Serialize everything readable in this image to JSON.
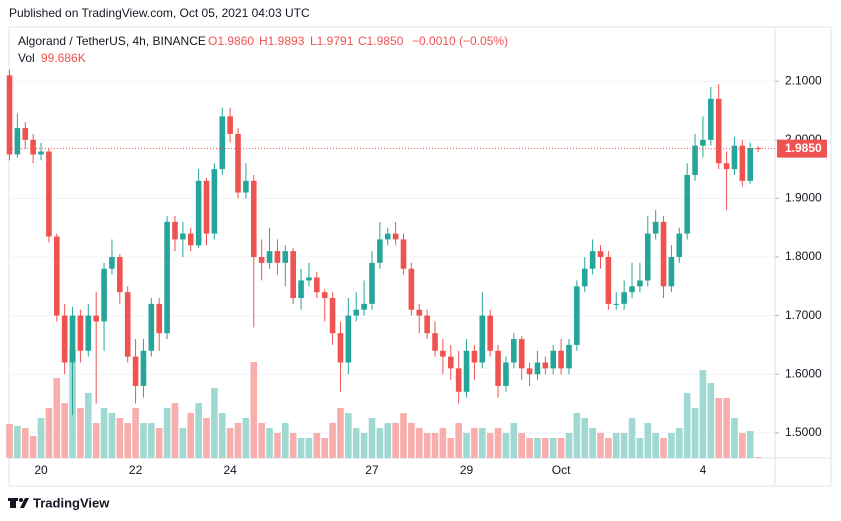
{
  "header": {
    "published": "Published on TradingView.com, Oct 05, 2021 04:03 UTC",
    "footer": "TradingView"
  },
  "chart_data": {
    "type": "candlestick",
    "title": "Algorand / TetherUS, 4h, BINANCE",
    "ohlc_labels": [
      "O1.9860",
      "H1.9893",
      "L1.9791",
      "C1.9850"
    ],
    "change_label": "−0.0010 (−0.05%)",
    "volume_name": "Vol",
    "volume_label": "99.686K",
    "categories": [
      null,
      null,
      null,
      null,
      "20",
      null,
      null,
      null,
      null,
      null,
      null,
      null,
      null,
      null,
      null,
      null,
      "22",
      null,
      null,
      null,
      null,
      null,
      null,
      null,
      null,
      null,
      null,
      null,
      "24",
      null,
      null,
      null,
      null,
      null,
      null,
      null,
      null,
      null,
      null,
      null,
      null,
      null,
      null,
      null,
      null,
      null,
      "27",
      null,
      null,
      null,
      null,
      null,
      null,
      null,
      null,
      null,
      null,
      null,
      "29",
      null,
      null,
      null,
      null,
      null,
      null,
      null,
      null,
      null,
      null,
      null,
      "Oct",
      null,
      null,
      null,
      null,
      null,
      null,
      null,
      null,
      null,
      null,
      null,
      null,
      null,
      null,
      null,
      null,
      null,
      "4",
      null,
      null,
      null,
      null,
      null,
      null,
      null
    ],
    "open": [
      2.11,
      1.975,
      2.02,
      2.0,
      1.975,
      1.98,
      1.835,
      1.7,
      1.62,
      1.7,
      1.64,
      1.7,
      1.69,
      1.78,
      1.8,
      1.74,
      1.63,
      1.58,
      1.64,
      1.72,
      1.67,
      1.86,
      1.83,
      1.84,
      1.82,
      1.93,
      1.84,
      1.95,
      2.04,
      2.01,
      1.91,
      1.93,
      1.8,
      1.79,
      1.81,
      1.79,
      1.81,
      1.73,
      1.76,
      1.765,
      1.74,
      1.73,
      1.67,
      1.62,
      1.7,
      1.71,
      1.72,
      1.79,
      1.83,
      1.84,
      1.83,
      1.78,
      1.71,
      1.7,
      1.67,
      1.64,
      1.63,
      1.61,
      1.57,
      1.64,
      1.62,
      1.7,
      1.64,
      1.58,
      1.62,
      1.66,
      1.61,
      1.6,
      1.62,
      1.61,
      1.64,
      1.61,
      1.65,
      1.75,
      1.78,
      1.81,
      1.8,
      1.72,
      1.72,
      1.74,
      1.75,
      1.76,
      1.84,
      1.86,
      1.75,
      1.8,
      1.84,
      1.94,
      1.99,
      2.0,
      2.07,
      1.96,
      1.95,
      1.99,
      1.93,
      1.986
    ],
    "high": [
      2.12,
      2.045,
      2.03,
      2.01,
      1.995,
      1.985,
      1.84,
      1.72,
      1.715,
      1.71,
      1.72,
      1.74,
      1.79,
      1.83,
      1.805,
      1.75,
      1.66,
      1.66,
      1.73,
      1.73,
      1.87,
      1.87,
      1.86,
      1.85,
      1.95,
      1.935,
      1.96,
      2.055,
      2.055,
      2.02,
      1.96,
      1.94,
      1.83,
      1.85,
      1.83,
      1.82,
      1.815,
      1.78,
      1.79,
      1.775,
      1.745,
      1.74,
      1.69,
      1.73,
      1.74,
      1.76,
      1.81,
      1.86,
      1.85,
      1.86,
      1.84,
      1.79,
      1.72,
      1.71,
      1.69,
      1.66,
      1.65,
      1.64,
      1.66,
      1.65,
      1.74,
      1.71,
      1.65,
      1.63,
      1.67,
      1.665,
      1.62,
      1.64,
      1.63,
      1.65,
      1.66,
      1.66,
      1.76,
      1.8,
      1.83,
      1.82,
      1.81,
      1.74,
      1.76,
      1.79,
      1.79,
      1.87,
      1.88,
      1.87,
      1.82,
      1.85,
      1.96,
      2.01,
      2.04,
      2.09,
      2.095,
      1.98,
      2.005,
      2.0,
      1.995,
      1.9893
    ],
    "low": [
      1.965,
      1.97,
      1.985,
      1.96,
      1.965,
      1.825,
      1.69,
      1.6,
      1.53,
      1.62,
      1.63,
      1.55,
      1.64,
      1.77,
      1.72,
      1.62,
      1.55,
      1.56,
      1.63,
      1.64,
      1.66,
      1.81,
      1.8,
      1.81,
      1.815,
      1.82,
      1.83,
      1.94,
      1.995,
      1.9,
      1.9,
      1.68,
      1.76,
      1.78,
      1.77,
      1.75,
      1.72,
      1.71,
      1.75,
      1.73,
      1.69,
      1.65,
      1.57,
      1.6,
      1.69,
      1.7,
      1.71,
      1.78,
      1.82,
      1.82,
      1.77,
      1.7,
      1.67,
      1.66,
      1.63,
      1.6,
      1.59,
      1.55,
      1.56,
      1.59,
      1.61,
      1.63,
      1.56,
      1.57,
      1.61,
      1.59,
      1.58,
      1.59,
      1.6,
      1.6,
      1.6,
      1.6,
      1.64,
      1.74,
      1.77,
      1.78,
      1.71,
      1.71,
      1.71,
      1.73,
      1.74,
      1.75,
      1.83,
      1.73,
      1.74,
      1.79,
      1.83,
      1.93,
      1.97,
      1.99,
      1.95,
      1.88,
      1.94,
      1.92,
      1.925,
      1.9791
    ],
    "close": [
      1.975,
      2.02,
      2.0,
      1.975,
      1.98,
      1.835,
      1.7,
      1.62,
      1.7,
      1.64,
      1.7,
      1.69,
      1.78,
      1.8,
      1.74,
      1.63,
      1.58,
      1.64,
      1.72,
      1.67,
      1.86,
      1.83,
      1.84,
      1.82,
      1.93,
      1.84,
      1.95,
      2.04,
      2.01,
      1.91,
      1.93,
      1.8,
      1.79,
      1.81,
      1.79,
      1.81,
      1.73,
      1.76,
      1.765,
      1.74,
      1.73,
      1.67,
      1.62,
      1.7,
      1.71,
      1.72,
      1.79,
      1.83,
      1.84,
      1.83,
      1.78,
      1.71,
      1.7,
      1.67,
      1.64,
      1.63,
      1.61,
      1.57,
      1.64,
      1.62,
      1.7,
      1.64,
      1.58,
      1.62,
      1.66,
      1.61,
      1.6,
      1.62,
      1.61,
      1.64,
      1.61,
      1.65,
      1.75,
      1.78,
      1.81,
      1.8,
      1.72,
      1.72,
      1.74,
      1.75,
      1.76,
      1.84,
      1.86,
      1.75,
      1.8,
      1.84,
      1.94,
      1.99,
      2.0,
      2.07,
      1.96,
      1.95,
      1.99,
      1.93,
      1.986,
      1.985
    ],
    "volume": [
      3400000,
      3200000,
      3000000,
      2200000,
      4000000,
      5000000,
      8000000,
      5500000,
      10800000,
      5000000,
      6500000,
      3500000,
      5000000,
      4500000,
      4000000,
      3500000,
      5000000,
      3500000,
      3500000,
      3000000,
      5000000,
      5500000,
      3000000,
      4500000,
      5500000,
      4000000,
      7000000,
      4500000,
      3000000,
      3500000,
      4000000,
      9600000,
      3500000,
      3000000,
      2500000,
      3500000,
      2500000,
      2000000,
      2000000,
      2500000,
      2000000,
      3500000,
      5000000,
      4500000,
      3000000,
      2500000,
      4000000,
      3000000,
      3500000,
      3500000,
      4500000,
      3500000,
      3000000,
      2500000,
      2500000,
      3000000,
      2000000,
      3500000,
      2500000,
      3000000,
      3000000,
      2500000,
      3000000,
      2500000,
      3500000,
      2500000,
      2000000,
      2000000,
      2000000,
      2000000,
      2000000,
      2500000,
      4500000,
      4000000,
      3000000,
      2500000,
      2000000,
      2500000,
      2500000,
      4000000,
      2000000,
      3500000,
      2500000,
      2000000,
      2500000,
      3000000,
      6500000,
      5000000,
      8800000,
      7500000,
      6000000,
      6000000,
      4000000,
      2500000,
      2700000,
      99686
    ],
    "up_color": "#26a69a",
    "down_color": "#ef5350",
    "up_volume_color": "#9fd9d2",
    "down_volume_color": "#f7aeac",
    "ylim": [
      1.457,
      2.1925
    ],
    "yticks": [
      {
        "value": 1.5,
        "label": "1.5000"
      },
      {
        "value": 1.6,
        "label": "1.6000"
      },
      {
        "value": 1.7,
        "label": "1.7000"
      },
      {
        "value": 1.8,
        "label": "1.8000"
      },
      {
        "value": 1.9,
        "label": "1.9000"
      },
      {
        "value": 2.0,
        "label": "2.0000"
      },
      {
        "value": 2.1,
        "label": "2.1000"
      }
    ],
    "last_price": {
      "value": 1.985,
      "label": "1.9850"
    },
    "grid": true
  }
}
